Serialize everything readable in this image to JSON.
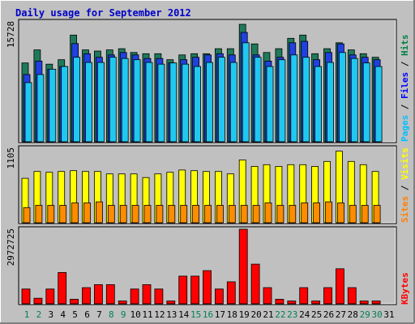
{
  "chart_data": [
    {
      "type": "bar",
      "title": "Daily usage for September 2012",
      "panel": "hits-files-pages",
      "ymax_label": "15728",
      "ylim": [
        0,
        15728
      ],
      "categories": [
        "1",
        "2",
        "3",
        "4",
        "5",
        "6",
        "7",
        "8",
        "9",
        "10",
        "11",
        "12",
        "13",
        "14",
        "15",
        "16",
        "17",
        "18",
        "19",
        "20",
        "21",
        "22",
        "23",
        "24",
        "25",
        "26",
        "27",
        "28",
        "29",
        "30",
        "31"
      ],
      "weekend_days": [
        "1",
        "2",
        "8",
        "9",
        "15",
        "16",
        "22",
        "23",
        "29",
        "30"
      ],
      "legend": [
        {
          "label": "Hits",
          "color": "#008040"
        },
        {
          "label": "Files",
          "color": "#0000ff"
        },
        {
          "label": "Pages",
          "color": "#00c0ff"
        }
      ],
      "series": [
        {
          "name": "Hits",
          "color": "#1e7a5a",
          "values": [
            10340,
            12055,
            10183,
            10763,
            14001,
            12055,
            11898,
            12055,
            12212,
            11712,
            11555,
            11555,
            10763,
            11397,
            11555,
            11555,
            12212,
            12212,
            15413,
            12835,
            11712,
            12212,
            13571,
            14001,
            11555,
            12212,
            12990,
            12055,
            11555,
            11082,
            0
          ]
        },
        {
          "name": "Files",
          "color": "#2040e0",
          "values": [
            8816,
            10580,
            9522,
            9875,
            12877,
            11555,
            11082,
            11397,
            11712,
            11397,
            10922,
            10922,
            10340,
            10763,
            11082,
            11397,
            11555,
            11397,
            14344,
            11397,
            10580,
            11082,
            12990,
            13179,
            10763,
            11712,
            12835,
            11397,
            11082,
            10763,
            0
          ]
        },
        {
          "name": "Pages",
          "color": "#20c8f0",
          "values": [
            7760,
            8816,
            9522,
            9875,
            11082,
            10400,
            10400,
            11082,
            10922,
            10763,
            10400,
            10183,
            10340,
            10183,
            9875,
            10400,
            11082,
            10400,
            12990,
            11082,
            9875,
            10763,
            11397,
            11082,
            9875,
            10400,
            11712,
            10922,
            10340,
            9875,
            0
          ]
        }
      ]
    },
    {
      "type": "bar",
      "panel": "visits-sites",
      "ymax_label": "1105",
      "ylim": [
        0,
        1105
      ],
      "legend": [
        {
          "label": "Visits",
          "color": "#ffff00"
        },
        {
          "label": "Sites",
          "color": "#ff8000"
        }
      ],
      "series": [
        {
          "name": "Visits",
          "color": "#ffff00",
          "values": [
            652,
            752,
            740,
            752,
            764,
            752,
            752,
            717,
            717,
            717,
            663,
            717,
            740,
            774,
            764,
            752,
            752,
            717,
            922,
            827,
            852,
            827,
            852,
            852,
            827,
            900,
            1050,
            900,
            852,
            752,
            0
          ]
        },
        {
          "name": "Sites",
          "color": "#ff8c00",
          "values": [
            222,
            256,
            256,
            256,
            291,
            291,
            307,
            256,
            256,
            256,
            256,
            256,
            256,
            256,
            256,
            256,
            256,
            256,
            256,
            256,
            291,
            256,
            256,
            291,
            291,
            307,
            291,
            256,
            256,
            256,
            0
          ]
        }
      ]
    },
    {
      "type": "bar",
      "panel": "kbytes",
      "ymax_label": "2972725",
      "ylim": [
        0,
        2972725
      ],
      "legend": [
        {
          "label": "KBytes",
          "color": "#ff0000"
        }
      ],
      "series": [
        {
          "name": "KBytes",
          "color": "#ff0000",
          "values": [
            587000,
            221000,
            587000,
            1248000,
            182000,
            643000,
            761000,
            761000,
            110000,
            587000,
            761000,
            587000,
            110000,
            1102000,
            1102000,
            1321000,
            587000,
            875000,
            2972725,
            1580000,
            643000,
            182000,
            110000,
            643000,
            110000,
            643000,
            1395000,
            643000,
            110000,
            110000,
            0
          ]
        }
      ]
    }
  ]
}
